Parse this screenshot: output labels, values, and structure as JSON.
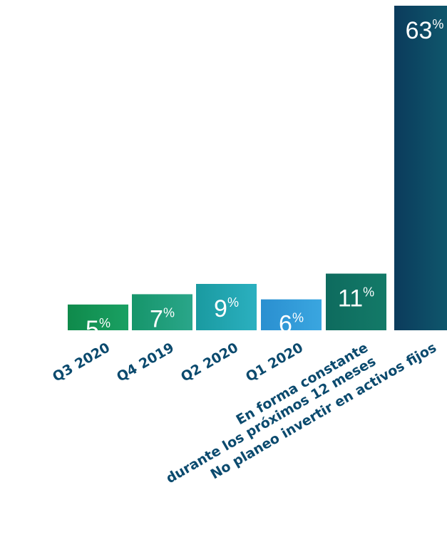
{
  "chart_data": {
    "type": "bar",
    "categories": [
      [
        "Q3 2020"
      ],
      [
        "Q4 2019"
      ],
      [
        "Q2 2020"
      ],
      [
        "Q1 2020"
      ],
      [
        "En forma constante",
        "durante los próximos 12 meses"
      ],
      [
        "No planeo invertir en activos fijos"
      ]
    ],
    "values": [
      5,
      7,
      9,
      6,
      11,
      63
    ],
    "value_suffix": "%",
    "colors": [
      [
        "#0f8a4b",
        "#1aa063"
      ],
      [
        "#16956a",
        "#2aa68a"
      ],
      [
        "#1a9aa0",
        "#2bb0c0"
      ],
      [
        "#2a8fd0",
        "#3aa6e0"
      ],
      [
        "#0e6b5e",
        "#137a68"
      ],
      [
        "#0b3b5c",
        "#0f5a6e"
      ]
    ],
    "ylim": [
      0,
      63
    ],
    "grid": false,
    "legend": "none"
  }
}
